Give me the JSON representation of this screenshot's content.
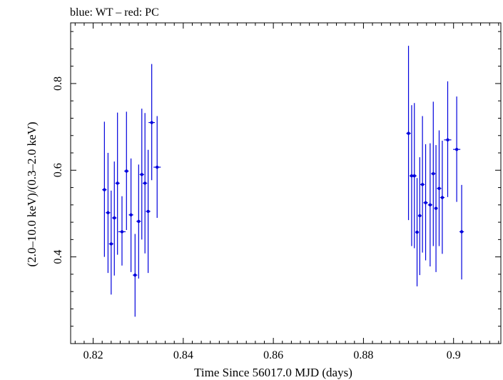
{
  "chart_data": {
    "type": "scatter",
    "title": "blue: WT – red: PC",
    "xlabel": "Time Since 56017.0 MJD (days)",
    "ylabel": "(2.0–10.0 keV)/(0.3–2.0 keV)",
    "xlim": [
      0.815,
      0.9105
    ],
    "ylim": [
      0.2,
      0.94
    ],
    "x_ticks": [
      "0.82",
      "0.84",
      "0.86",
      "0.88",
      "0.9"
    ],
    "y_ticks": [
      "0.4",
      "0.6",
      "0.8"
    ],
    "grid": false,
    "colors": {
      "WT": "#0000dd",
      "PC": "#dd0000"
    },
    "series": [
      {
        "name": "WT",
        "points": [
          {
            "x": 0.8225,
            "y": 0.555,
            "lo": 0.4,
            "hi": 0.712,
            "xerr": 0.0005
          },
          {
            "x": 0.8233,
            "y": 0.502,
            "lo": 0.363,
            "hi": 0.64,
            "xerr": 0.0005
          },
          {
            "x": 0.824,
            "y": 0.43,
            "lo": 0.313,
            "hi": 0.553,
            "xerr": 0.0005
          },
          {
            "x": 0.8247,
            "y": 0.49,
            "lo": 0.357,
            "hi": 0.62,
            "xerr": 0.0005
          },
          {
            "x": 0.8254,
            "y": 0.57,
            "lo": 0.405,
            "hi": 0.733,
            "xerr": 0.0005
          },
          {
            "x": 0.8264,
            "y": 0.458,
            "lo": 0.38,
            "hi": 0.54,
            "xerr": 0.0008
          },
          {
            "x": 0.8274,
            "y": 0.598,
            "lo": 0.462,
            "hi": 0.735,
            "xerr": 0.0005
          },
          {
            "x": 0.8284,
            "y": 0.497,
            "lo": 0.365,
            "hi": 0.627,
            "xerr": 0.0005
          },
          {
            "x": 0.8293,
            "y": 0.358,
            "lo": 0.262,
            "hi": 0.453,
            "xerr": 0.0005
          },
          {
            "x": 0.8301,
            "y": 0.482,
            "lo": 0.35,
            "hi": 0.613,
            "xerr": 0.0005
          },
          {
            "x": 0.8308,
            "y": 0.59,
            "lo": 0.44,
            "hi": 0.742,
            "xerr": 0.0005
          },
          {
            "x": 0.8315,
            "y": 0.57,
            "lo": 0.408,
            "hi": 0.732,
            "xerr": 0.0005
          },
          {
            "x": 0.8322,
            "y": 0.505,
            "lo": 0.363,
            "hi": 0.647,
            "xerr": 0.0005
          },
          {
            "x": 0.833,
            "y": 0.71,
            "lo": 0.577,
            "hi": 0.845,
            "xerr": 0.0007
          },
          {
            "x": 0.8342,
            "y": 0.607,
            "lo": 0.49,
            "hi": 0.725,
            "xerr": 0.0008
          },
          {
            "x": 0.89,
            "y": 0.685,
            "lo": 0.485,
            "hi": 0.887,
            "xerr": 0.0005
          },
          {
            "x": 0.8907,
            "y": 0.587,
            "lo": 0.425,
            "hi": 0.75,
            "xerr": 0.0005
          },
          {
            "x": 0.8913,
            "y": 0.587,
            "lo": 0.42,
            "hi": 0.755,
            "xerr": 0.0005
          },
          {
            "x": 0.8919,
            "y": 0.457,
            "lo": 0.332,
            "hi": 0.582,
            "xerr": 0.0004
          },
          {
            "x": 0.8925,
            "y": 0.495,
            "lo": 0.358,
            "hi": 0.63,
            "xerr": 0.0004
          },
          {
            "x": 0.8931,
            "y": 0.567,
            "lo": 0.41,
            "hi": 0.725,
            "xerr": 0.0005
          },
          {
            "x": 0.8938,
            "y": 0.525,
            "lo": 0.392,
            "hi": 0.66,
            "xerr": 0.0005
          },
          {
            "x": 0.8948,
            "y": 0.52,
            "lo": 0.378,
            "hi": 0.662,
            "xerr": 0.0005
          },
          {
            "x": 0.8955,
            "y": 0.592,
            "lo": 0.425,
            "hi": 0.758,
            "xerr": 0.0005
          },
          {
            "x": 0.8961,
            "y": 0.512,
            "lo": 0.365,
            "hi": 0.658,
            "xerr": 0.0004
          },
          {
            "x": 0.8968,
            "y": 0.558,
            "lo": 0.425,
            "hi": 0.692,
            "xerr": 0.0005
          },
          {
            "x": 0.8975,
            "y": 0.537,
            "lo": 0.407,
            "hi": 0.668,
            "xerr": 0.0005
          },
          {
            "x": 0.8987,
            "y": 0.67,
            "lo": 0.538,
            "hi": 0.805,
            "xerr": 0.0008
          },
          {
            "x": 0.9007,
            "y": 0.648,
            "lo": 0.527,
            "hi": 0.77,
            "xerr": 0.0008
          },
          {
            "x": 0.9018,
            "y": 0.458,
            "lo": 0.348,
            "hi": 0.566,
            "xerr": 0.0005
          }
        ]
      }
    ]
  }
}
